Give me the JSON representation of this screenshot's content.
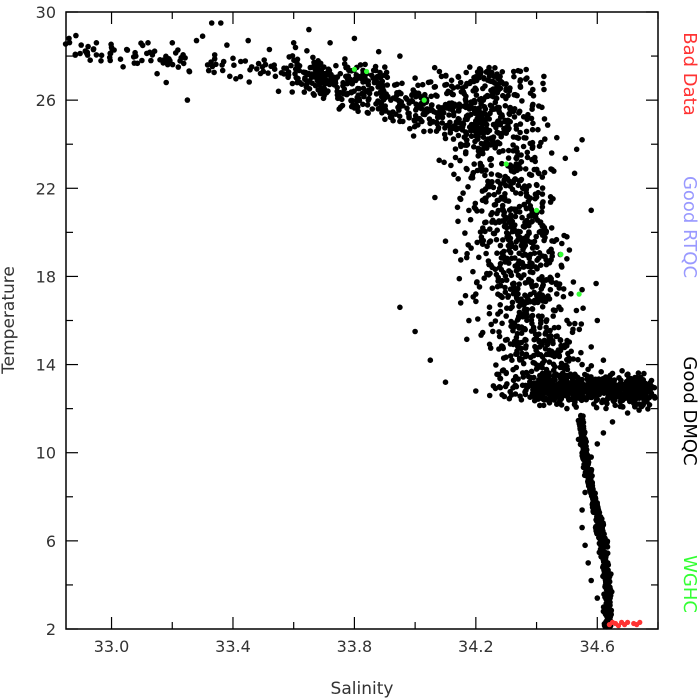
{
  "chart_data": {
    "type": "scatter",
    "title": "",
    "xlabel": "Salinity",
    "ylabel": "Temperature",
    "xlim": [
      32.85,
      34.8
    ],
    "ylim": [
      2,
      30
    ],
    "x_ticks": [
      33.0,
      33.4,
      33.8,
      34.2,
      34.6
    ],
    "x_tick_labels": [
      "33.0",
      "33.4",
      "33.8",
      "34.2",
      "34.6"
    ],
    "y_ticks": [
      2,
      6,
      10,
      14,
      18,
      22,
      26,
      30
    ],
    "y_tick_labels": [
      "2",
      "6",
      "10",
      "14",
      "18",
      "22",
      "26",
      "30"
    ],
    "grid": false,
    "legend_placement": "right-outside-vertical",
    "series": [
      {
        "name": "Bad Data",
        "color": "#ff3333",
        "points": [
          [
            34.64,
            2.2
          ],
          [
            34.66,
            2.25
          ],
          [
            34.68,
            2.3
          ],
          [
            34.69,
            2.2
          ],
          [
            34.7,
            2.3
          ],
          [
            34.72,
            2.25
          ],
          [
            34.73,
            2.2
          ],
          [
            34.67,
            2.15
          ],
          [
            34.74,
            2.3
          ],
          [
            34.65,
            2.3
          ]
        ]
      },
      {
        "name": "Good RTQC",
        "color": "#9999ff",
        "points": []
      },
      {
        "name": "Good DMQC",
        "color": "#000000",
        "description_ranges": {
          "surface_band": {
            "x": [
              32.85,
              33.9
            ],
            "y": [
              25.5,
              29.5
            ]
          },
          "mixed_layer": {
            "x": [
              33.6,
              34.2
            ],
            "y": [
              24.0,
              29.0
            ]
          },
          "thermocline": {
            "x": [
              33.9,
              34.6
            ],
            "y": [
              12.0,
              28.5
            ]
          },
          "subsurface_max": {
            "x": [
              34.5,
              34.8
            ],
            "y": [
              11.5,
              14.5
            ]
          },
          "deep_tail": {
            "x": [
              34.55,
              34.7
            ],
            "y": [
              2.0,
              11.5
            ]
          }
        },
        "points": [
          [
            32.86,
            28.8
          ],
          [
            32.9,
            28.5
          ],
          [
            32.95,
            28.6
          ],
          [
            33.0,
            28.4
          ],
          [
            33.05,
            28.3
          ],
          [
            33.08,
            28.0
          ],
          [
            33.1,
            27.8
          ],
          [
            33.12,
            28.6
          ],
          [
            33.15,
            27.2
          ],
          [
            33.18,
            26.8
          ],
          [
            33.2,
            28.6
          ],
          [
            33.22,
            27.5
          ],
          [
            33.25,
            26.0
          ],
          [
            33.28,
            28.7
          ],
          [
            33.3,
            28.9
          ],
          [
            33.33,
            29.5
          ],
          [
            33.36,
            29.5
          ],
          [
            33.38,
            28.5
          ],
          [
            33.4,
            27.9
          ],
          [
            33.45,
            28.7
          ],
          [
            33.5,
            27.3
          ],
          [
            33.52,
            28.3
          ],
          [
            33.55,
            26.4
          ],
          [
            33.6,
            28.6
          ],
          [
            33.62,
            26.8
          ],
          [
            33.65,
            29.2
          ],
          [
            33.68,
            27.0
          ],
          [
            33.7,
            26.2
          ],
          [
            33.72,
            28.6
          ],
          [
            33.75,
            25.6
          ],
          [
            33.78,
            27.1
          ],
          [
            33.8,
            28.8
          ],
          [
            33.82,
            27.6
          ],
          [
            33.85,
            26.3
          ],
          [
            33.88,
            28.2
          ],
          [
            33.9,
            27.5
          ],
          [
            33.92,
            26.0
          ],
          [
            33.95,
            28.0
          ],
          [
            33.98,
            25.2
          ],
          [
            34.0,
            27.0
          ],
          [
            34.02,
            26.1
          ],
          [
            34.05,
            24.6
          ],
          [
            34.08,
            27.3
          ],
          [
            34.1,
            25.8
          ],
          [
            34.12,
            26.9
          ],
          [
            34.15,
            24.0
          ],
          [
            34.18,
            27.5
          ],
          [
            34.2,
            25.0
          ],
          [
            34.22,
            23.0
          ],
          [
            34.25,
            26.2
          ],
          [
            34.28,
            22.0
          ],
          [
            34.3,
            24.5
          ],
          [
            34.32,
            20.5
          ],
          [
            34.35,
            23.2
          ],
          [
            34.38,
            19.0
          ],
          [
            34.4,
            21.6
          ],
          [
            34.42,
            17.8
          ],
          [
            34.45,
            20.2
          ],
          [
            34.48,
            16.5
          ],
          [
            34.5,
            18.8
          ],
          [
            34.52,
            15.6
          ],
          [
            34.55,
            17.4
          ],
          [
            34.58,
            14.8
          ],
          [
            34.6,
            16.0
          ],
          [
            34.62,
            14.2
          ],
          [
            34.65,
            13.6
          ],
          [
            34.68,
            13.0
          ],
          [
            34.7,
            12.8
          ],
          [
            34.72,
            12.6
          ],
          [
            34.75,
            12.9
          ],
          [
            34.78,
            13.0
          ],
          [
            34.76,
            12.4
          ],
          [
            34.7,
            11.8
          ],
          [
            34.65,
            11.4
          ],
          [
            34.62,
            10.9
          ],
          [
            34.6,
            10.4
          ],
          [
            34.58,
            9.8
          ],
          [
            34.57,
            9.0
          ],
          [
            34.56,
            8.2
          ],
          [
            34.55,
            7.4
          ],
          [
            34.55,
            6.6
          ],
          [
            34.56,
            5.8
          ],
          [
            34.57,
            5.0
          ],
          [
            34.58,
            4.2
          ],
          [
            34.6,
            3.4
          ],
          [
            34.62,
            2.8
          ],
          [
            34.64,
            2.3
          ],
          [
            34.0,
            15.5
          ],
          [
            34.05,
            14.2
          ],
          [
            34.1,
            13.2
          ],
          [
            34.15,
            16.8
          ],
          [
            34.2,
            12.8
          ],
          [
            34.25,
            18.5
          ],
          [
            34.3,
            13.6
          ],
          [
            34.35,
            15.0
          ],
          [
            34.4,
            12.5
          ],
          [
            34.45,
            14.6
          ],
          [
            34.5,
            12.0
          ],
          [
            34.1,
            19.6
          ],
          [
            34.15,
            21.5
          ],
          [
            34.2,
            17.2
          ],
          [
            34.25,
            20.8
          ],
          [
            34.3,
            16.2
          ],
          [
            34.35,
            22.4
          ],
          [
            34.4,
            13.8
          ],
          [
            34.45,
            23.6
          ],
          [
            34.5,
            19.8
          ],
          [
            34.55,
            24.2
          ],
          [
            34.58,
            21.0
          ],
          [
            33.95,
            16.6
          ],
          [
            34.55,
            14.0
          ],
          [
            34.6,
            13.0
          ],
          [
            34.5,
            13.5
          ],
          [
            34.45,
            12.6
          ],
          [
            34.35,
            12.4
          ]
        ]
      },
      {
        "name": "WGHC",
        "color": "#33ff33",
        "points": [
          [
            33.8,
            27.4
          ],
          [
            33.84,
            27.3
          ],
          [
            34.03,
            26.0
          ],
          [
            34.3,
            23.1
          ],
          [
            34.4,
            21.0
          ],
          [
            34.48,
            19.0
          ],
          [
            34.54,
            17.2
          ]
        ]
      }
    ]
  }
}
